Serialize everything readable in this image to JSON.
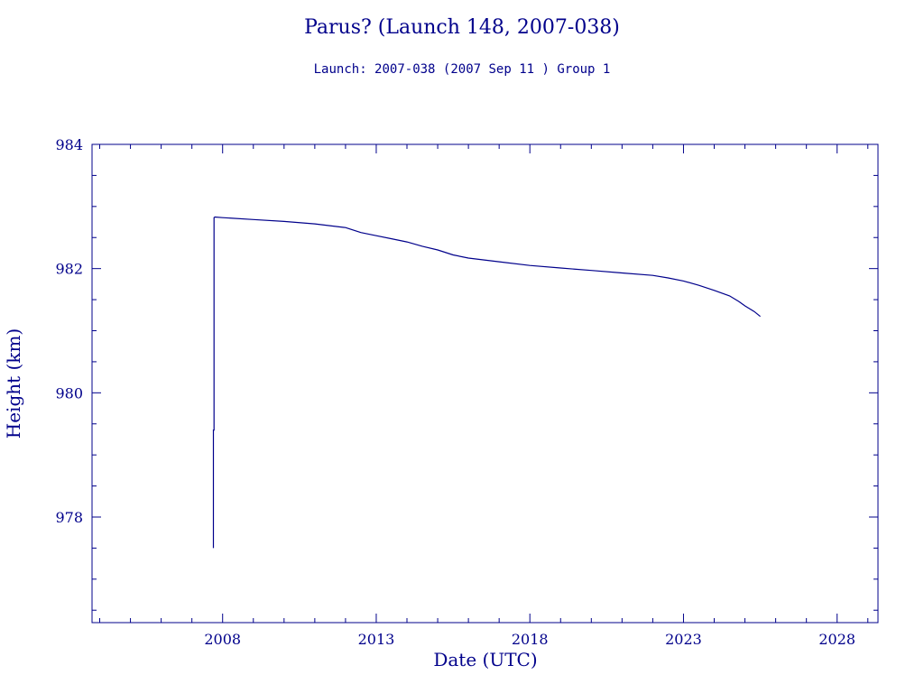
{
  "chart_data": {
    "type": "line",
    "title": "Parus? (Launch 148, 2007-038)",
    "subtitle": "Launch: 2007-038  (2007 Sep 11 )  Group 1",
    "xlabel": "Date (UTC)",
    "ylabel": "Height (km)",
    "x_ticks": [
      "2008",
      "2013",
      "2018",
      "2023",
      "2028"
    ],
    "y_ticks": [
      "978",
      "980",
      "982",
      "984"
    ],
    "xlim": [
      2003.75,
      2029.33
    ],
    "ylim": [
      976.3,
      984.0
    ],
    "grid": false,
    "colors": {
      "ink": "#00008b"
    },
    "series": [
      {
        "x": [
          2007.7,
          2007.7,
          2007.72,
          2007.72,
          2007.75,
          2008.0,
          2009.0,
          2010.0,
          2011.0,
          2012.0,
          2012.5,
          2013.0,
          2013.5,
          2014.0,
          2014.5,
          2015.0,
          2015.5,
          2016.0,
          2017.0,
          2018.0,
          2019.0,
          2020.0,
          2021.0,
          2022.0,
          2022.5,
          2023.0,
          2023.5,
          2024.0,
          2024.5,
          2024.8,
          2025.0,
          2025.3,
          2025.5
        ],
        "y": [
          977.5,
          979.4,
          979.4,
          982.82,
          982.83,
          982.82,
          982.79,
          982.76,
          982.72,
          982.66,
          982.58,
          982.53,
          982.48,
          982.43,
          982.36,
          982.3,
          982.22,
          982.17,
          982.11,
          982.05,
          982.01,
          981.97,
          981.93,
          981.89,
          981.85,
          981.8,
          981.73,
          981.65,
          981.56,
          981.47,
          981.4,
          981.31,
          981.23
        ]
      }
    ]
  }
}
